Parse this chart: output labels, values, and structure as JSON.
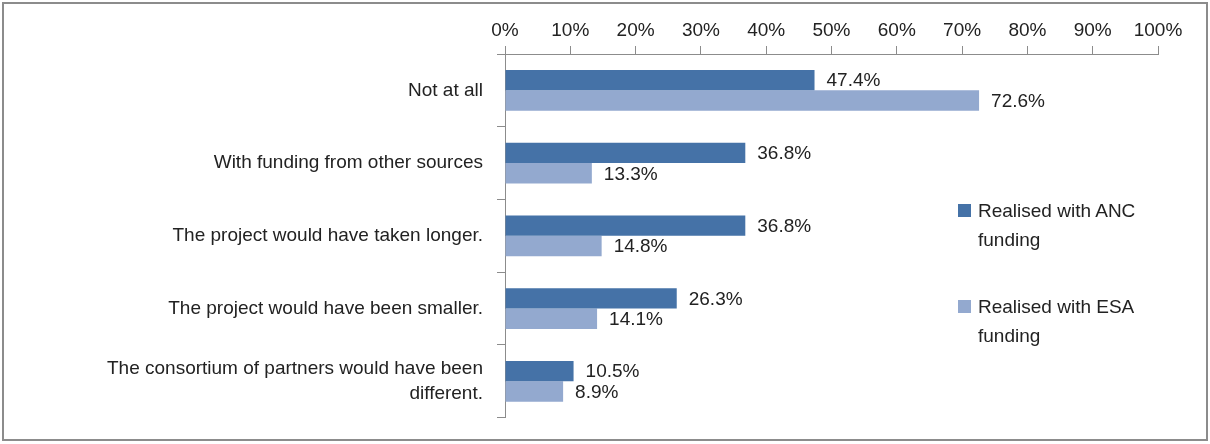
{
  "chart_data": {
    "type": "bar",
    "orientation": "horizontal",
    "categories": [
      "Not at all",
      "With funding from other sources",
      "The project would have taken longer.",
      "The project would have been smaller.",
      "The consortium of partners would have been different."
    ],
    "series": [
      {
        "name": "Realised with ANC funding",
        "color": "#4572a7",
        "values": [
          47.4,
          36.8,
          36.8,
          26.3,
          10.5
        ],
        "value_labels": [
          "47.4%",
          "36.8%",
          "36.8%",
          "26.3%",
          "10.5%"
        ]
      },
      {
        "name": "Realised with ESA funding",
        "color": "#93a9cf",
        "values": [
          72.6,
          13.3,
          14.8,
          14.1,
          8.9
        ],
        "value_labels": [
          "72.6%",
          "13.3%",
          "14.8%",
          "14.1%",
          "8.9%"
        ]
      }
    ],
    "xlim": [
      0,
      100
    ],
    "xticks": [
      {
        "value": 0,
        "label": "0%"
      },
      {
        "value": 10,
        "label": "10%"
      },
      {
        "value": 20,
        "label": "20%"
      },
      {
        "value": 30,
        "label": "30%"
      },
      {
        "value": 40,
        "label": "40%"
      },
      {
        "value": 50,
        "label": "50%"
      },
      {
        "value": 60,
        "label": "60%"
      },
      {
        "value": 70,
        "label": "70%"
      },
      {
        "value": 80,
        "label": "80%"
      },
      {
        "value": 90,
        "label": "90%"
      },
      {
        "value": 100,
        "label": "100%"
      }
    ],
    "grid": false,
    "legend": "right"
  }
}
